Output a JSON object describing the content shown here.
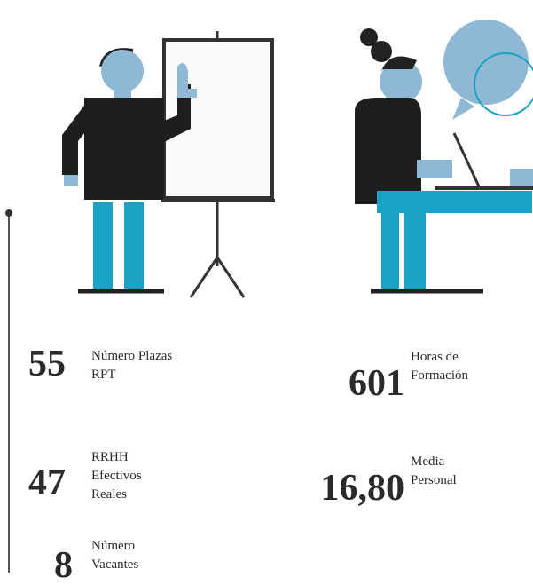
{
  "stats": [
    {
      "value": 55,
      "label": [
        "Número Plazas",
        "RPT"
      ]
    },
    {
      "value": 47,
      "label": [
        "RRHH",
        "Efectivos",
        "Reales"
      ]
    },
    {
      "value": 8,
      "label": [
        "Número",
        "Vacantes"
      ]
    },
    {
      "value": 601,
      "label": [
        "Horas de",
        "Formación"
      ]
    },
    {
      "value": "16,80",
      "label": [
        "Media",
        "Personal"
      ]
    }
  ]
}
